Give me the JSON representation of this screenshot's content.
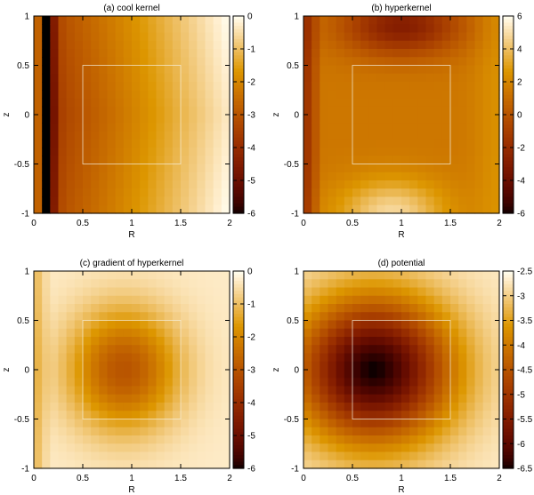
{
  "chart_data": [
    {
      "type": "heatmap",
      "title": "(a) cool kernel",
      "xlabel": "R",
      "ylabel": "z",
      "xlim": [
        0,
        2
      ],
      "ylim": [
        -1,
        1
      ],
      "xticks": [
        "0",
        "0.5",
        "1",
        "1.5",
        "2"
      ],
      "yticks": [
        "-1",
        "-0.5",
        "0",
        "0.5",
        "1"
      ],
      "colorbar": {
        "range": [
          -6,
          0
        ],
        "ticks": [
          "-6",
          "-5",
          "-4",
          "-3",
          "-2",
          "-1",
          "0"
        ]
      },
      "box": {
        "R": [
          0.5,
          1.5
        ],
        "z": [
          -0.5,
          0.5
        ]
      },
      "grid": {
        "nx": 24,
        "ny": 24
      }
    },
    {
      "type": "heatmap",
      "title": "(b) hyperkernel",
      "xlabel": "R",
      "ylabel": "z",
      "xlim": [
        0,
        2
      ],
      "ylim": [
        -1,
        1
      ],
      "xticks": [
        "0",
        "0.5",
        "1",
        "1.5",
        "2"
      ],
      "yticks": [
        "-1",
        "-0.5",
        "0",
        "0.5",
        "1"
      ],
      "colorbar": {
        "range": [
          -6,
          6
        ],
        "ticks": [
          "-6",
          "-4",
          "-2",
          "0",
          "2",
          "4",
          "6"
        ]
      },
      "box": {
        "R": [
          0.5,
          1.5
        ],
        "z": [
          -0.5,
          0.5
        ]
      },
      "grid": {
        "nx": 24,
        "ny": 24
      }
    },
    {
      "type": "heatmap",
      "title": "(c) gradient of hyperkernel",
      "xlabel": "R",
      "ylabel": "z",
      "xlim": [
        0,
        2
      ],
      "ylim": [
        -1,
        1
      ],
      "xticks": [
        "0",
        "0.5",
        "1",
        "1.5",
        "2"
      ],
      "yticks": [
        "-1",
        "-0.5",
        "0",
        "0.5",
        "1"
      ],
      "colorbar": {
        "range": [
          -6,
          0
        ],
        "ticks": [
          "-6",
          "-5",
          "-4",
          "-3",
          "-2",
          "-1",
          "0"
        ]
      },
      "box": {
        "R": [
          0.5,
          1.5
        ],
        "z": [
          -0.5,
          0.5
        ]
      },
      "grid": {
        "nx": 24,
        "ny": 24
      }
    },
    {
      "type": "heatmap",
      "title": "(d) potential",
      "xlabel": "R",
      "ylabel": "z",
      "xlim": [
        0,
        2
      ],
      "ylim": [
        -1,
        1
      ],
      "xticks": [
        "0",
        "0.5",
        "1",
        "1.5",
        "2"
      ],
      "yticks": [
        "-1",
        "-0.5",
        "0",
        "0.5",
        "1"
      ],
      "colorbar": {
        "range": [
          -6.5,
          -2.5
        ],
        "ticks": [
          "-6.5",
          "-6",
          "-5.5",
          "-5",
          "-4.5",
          "-4",
          "-3.5",
          "-3",
          "-2.5"
        ]
      },
      "box": {
        "R": [
          0.5,
          1.5
        ],
        "z": [
          -0.5,
          0.5
        ]
      },
      "grid": {
        "nx": 24,
        "ny": 24
      }
    }
  ]
}
